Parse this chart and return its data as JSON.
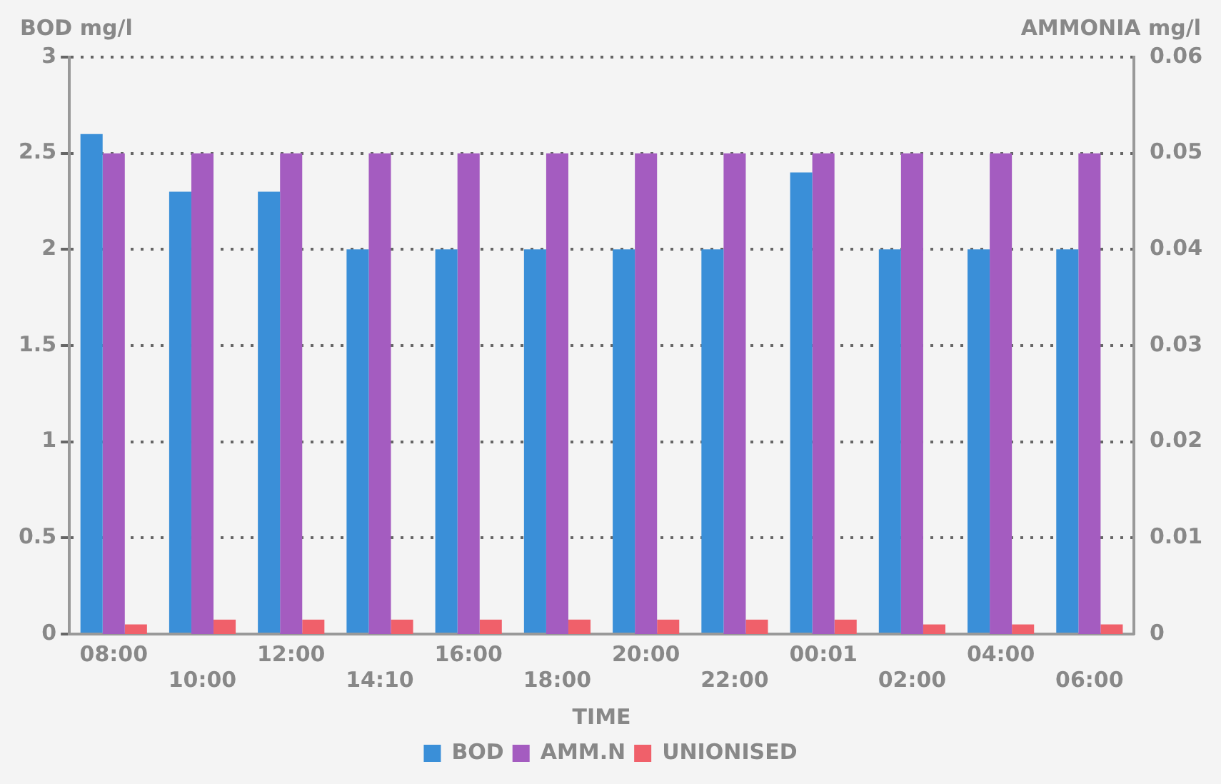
{
  "chart_data": {
    "type": "bar",
    "xlabel": "TIME",
    "ylabel": "BOD mg/l",
    "y2label": "AMMONIA mg/l",
    "categories": [
      "08:00",
      "10:00",
      "12:00",
      "14:10",
      "16:00",
      "18:00",
      "20:00",
      "22:00",
      "00:01",
      "02:00",
      "04:00",
      "06:00"
    ],
    "series": [
      {
        "name": "BOD",
        "color": "#3a8fd8",
        "values": [
          2.6,
          2.3,
          2.3,
          2,
          2,
          2,
          2,
          2,
          2.4,
          2,
          2,
          2
        ]
      },
      {
        "name": "AMM.N",
        "color": "#a45cc0",
        "axis": "y2",
        "values": [
          0.05,
          0.05,
          0.05,
          0.05,
          0.05,
          0.05,
          0.05,
          0.05,
          0.05,
          0.05,
          0.05,
          0.05
        ]
      },
      {
        "name": "UNIONISED",
        "color": "#f0606a",
        "axis": "y2",
        "values": [
          0.001,
          0.0015,
          0.0015,
          0.0015,
          0.0015,
          0.0015,
          0.0015,
          0.0015,
          0.0015,
          0.001,
          0.001,
          0.001
        ]
      }
    ],
    "ylim": [
      0,
      3
    ],
    "yticks": [
      0,
      0.5,
      1,
      1.5,
      2,
      2.5,
      3
    ],
    "y2lim": [
      0,
      0.06
    ],
    "y2ticks": [
      0,
      0.01,
      0.02,
      0.03,
      0.04,
      0.05,
      0.06
    ],
    "grid": "y",
    "legend": "bottom"
  }
}
